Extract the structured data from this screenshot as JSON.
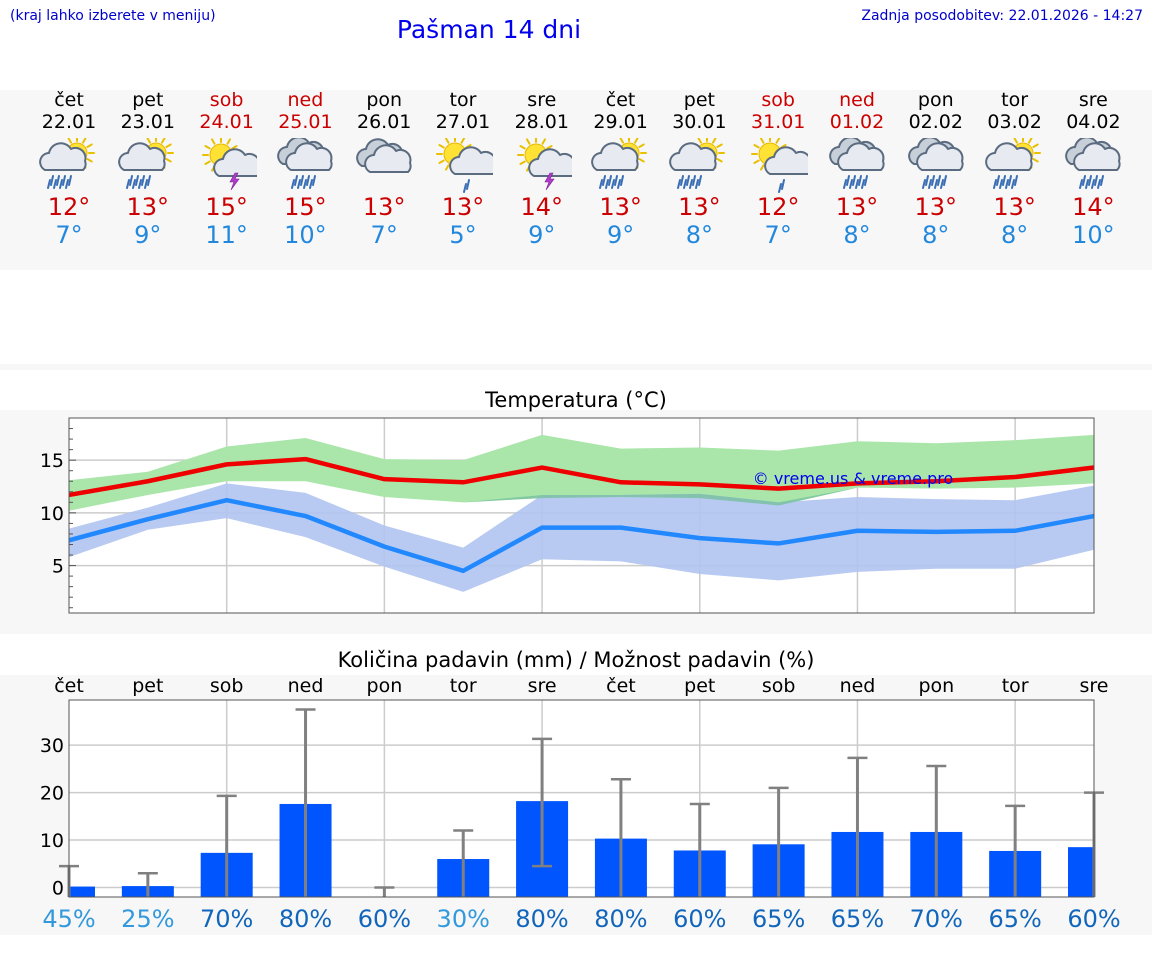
{
  "header": {
    "menu_note": "(kraj lahko izberete v meniju)",
    "title": "Pašman 14 dni",
    "last_update": "Zadnja posodobitev: 22.01.2026 - 14:27"
  },
  "days": [
    {
      "name": "čet",
      "date": "22.01",
      "weekend": false,
      "icon": "sun-cloud-rain-icon",
      "tmax": "12°",
      "tmin": "7°"
    },
    {
      "name": "pet",
      "date": "23.01",
      "weekend": false,
      "icon": "sun-cloud-rain-icon",
      "tmax": "13°",
      "tmin": "9°"
    },
    {
      "name": "sob",
      "date": "24.01",
      "weekend": true,
      "icon": "sun-thunder-icon",
      "tmax": "15°",
      "tmin": "11°"
    },
    {
      "name": "ned",
      "date": "25.01",
      "weekend": true,
      "icon": "cloud-rain-icon",
      "tmax": "15°",
      "tmin": "10°"
    },
    {
      "name": "pon",
      "date": "26.01",
      "weekend": false,
      "icon": "cloud-icon",
      "tmax": "13°",
      "tmin": "7°"
    },
    {
      "name": "tor",
      "date": "27.01",
      "weekend": false,
      "icon": "sun-cloud-light-rain-icon",
      "tmax": "13°",
      "tmin": "5°"
    },
    {
      "name": "sre",
      "date": "28.01",
      "weekend": false,
      "icon": "sun-thunder-icon",
      "tmax": "14°",
      "tmin": "9°"
    },
    {
      "name": "čet",
      "date": "29.01",
      "weekend": false,
      "icon": "sun-cloud-rain-icon",
      "tmax": "13°",
      "tmin": "9°"
    },
    {
      "name": "pet",
      "date": "30.01",
      "weekend": false,
      "icon": "sun-cloud-rain-icon",
      "tmax": "13°",
      "tmin": "8°"
    },
    {
      "name": "sob",
      "date": "31.01",
      "weekend": true,
      "icon": "sun-cloud-light-rain-icon",
      "tmax": "12°",
      "tmin": "7°"
    },
    {
      "name": "ned",
      "date": "01.02",
      "weekend": true,
      "icon": "cloud-rain-icon",
      "tmax": "13°",
      "tmin": "8°"
    },
    {
      "name": "pon",
      "date": "02.02",
      "weekend": false,
      "icon": "cloud-rain-icon",
      "tmax": "13°",
      "tmin": "8°"
    },
    {
      "name": "tor",
      "date": "03.02",
      "weekend": false,
      "icon": "sun-cloud-rain-icon",
      "tmax": "13°",
      "tmin": "8°"
    },
    {
      "name": "sre",
      "date": "04.02",
      "weekend": false,
      "icon": "cloud-rain-icon",
      "tmax": "14°",
      "tmin": "10°"
    }
  ],
  "colors": {
    "max_line": "#ee0000",
    "max_band": "#aae6aa",
    "min_line": "#2288ff",
    "min_band": "#b0c4f0",
    "overlap_band": "#78c0a0",
    "bar": "#0055ff",
    "whisker": "#808080",
    "pct_low": "#3399dd",
    "pct_high": "#1166bb"
  },
  "chart_data": [
    {
      "type": "line",
      "title": "Temperatura (°C)",
      "categories": [
        "22.01",
        "23.01",
        "24.01",
        "25.01",
        "26.01",
        "27.01",
        "28.01",
        "29.01",
        "30.01",
        "31.01",
        "01.02",
        "02.02",
        "03.02",
        "04.02"
      ],
      "yticks": [
        5,
        10,
        15
      ],
      "ylim": [
        0.5,
        19
      ],
      "watermark": "© vreme.us & vreme.pro",
      "series": [
        {
          "name": "max",
          "values": [
            11.7,
            13.0,
            14.6,
            15.1,
            13.2,
            12.9,
            14.3,
            12.9,
            12.7,
            12.3,
            12.8,
            13.0,
            13.4,
            14.3
          ],
          "band_low": [
            10.2,
            11.7,
            13.0,
            13.0,
            11.5,
            11.0,
            11.4,
            11.5,
            11.4,
            10.7,
            12.4,
            12.3,
            12.4,
            12.8
          ],
          "band_high": [
            13.1,
            13.9,
            16.3,
            17.1,
            15.1,
            15.0,
            17.4,
            16.1,
            16.2,
            15.9,
            16.8,
            16.6,
            16.9,
            17.4
          ]
        },
        {
          "name": "min",
          "values": [
            7.4,
            9.4,
            11.2,
            9.7,
            6.8,
            4.5,
            8.6,
            8.6,
            7.6,
            7.1,
            8.3,
            8.2,
            8.3,
            9.7
          ],
          "band_low": [
            5.8,
            8.4,
            9.5,
            7.7,
            4.9,
            2.5,
            5.6,
            5.4,
            4.2,
            3.6,
            4.4,
            4.7,
            4.7,
            6.5
          ],
          "band_high": [
            8.5,
            10.5,
            12.8,
            11.9,
            8.8,
            6.7,
            11.7,
            11.7,
            11.8,
            11.0,
            11.5,
            11.3,
            11.2,
            12.6
          ]
        }
      ]
    },
    {
      "type": "bar",
      "title": "Količina padavin (mm) / Možnost padavin (%)",
      "categories": [
        "čet",
        "pet",
        "sob",
        "ned",
        "pon",
        "tor",
        "sre",
        "čet",
        "pet",
        "sob",
        "ned",
        "pon",
        "tor",
        "sre"
      ],
      "yticks": [
        0,
        10,
        20,
        30
      ],
      "ylim": [
        -2,
        39.5
      ],
      "values": [
        0.2,
        0.3,
        7.3,
        17.6,
        0,
        6.0,
        18.2,
        10.3,
        7.8,
        9.1,
        11.7,
        11.7,
        7.7,
        8.5
      ],
      "err_high": [
        4.5,
        3.0,
        19.3,
        37.5,
        0,
        12.0,
        31.3,
        22.8,
        17.6,
        21.0,
        27.3,
        25.6,
        17.2,
        20.0
      ],
      "err_low": [
        0,
        0,
        0,
        0,
        0,
        0,
        4.5,
        0,
        0,
        0,
        0,
        0,
        0,
        0
      ],
      "probability": [
        "45%",
        "25%",
        "70%",
        "80%",
        "60%",
        "30%",
        "80%",
        "80%",
        "60%",
        "65%",
        "65%",
        "70%",
        "65%",
        "60%"
      ]
    }
  ]
}
